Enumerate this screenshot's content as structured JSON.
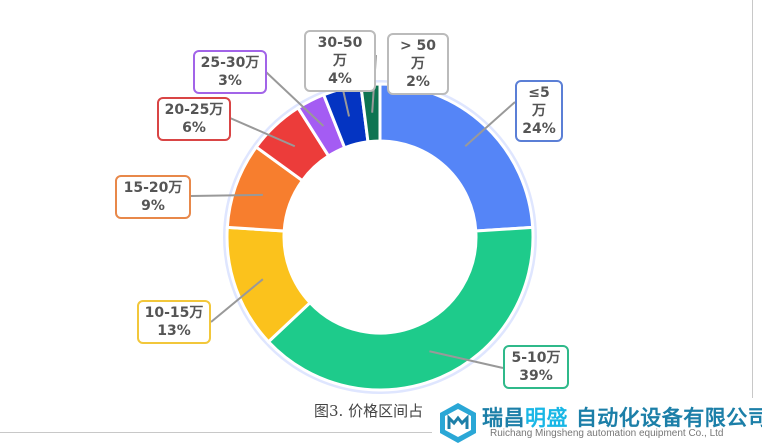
{
  "chart_data": {
    "type": "pie",
    "donut": true,
    "start": "top, clockwise",
    "slices": [
      {
        "label": "≤5万",
        "pct_label": "24%",
        "value": 24,
        "color": "#5585f7"
      },
      {
        "label": "5-10万",
        "pct_label": "39%",
        "value": 39,
        "color": "#1ecb8b"
      },
      {
        "label": "10-15万",
        "pct_label": "13%",
        "value": 13,
        "color": "#fbc21c"
      },
      {
        "label": "15-20万",
        "pct_label": "9%",
        "value": 9,
        "color": "#f77e2e"
      },
      {
        "label": "20-25万",
        "pct_label": "6%",
        "value": 6,
        "color": "#ec3c3a"
      },
      {
        "label": "25-30万",
        "pct_label": "3%",
        "value": 3,
        "color": "#a45cf3"
      },
      {
        "label": "30-50万",
        "pct_label": "4%",
        "value": 4,
        "color": "#0434c2"
      },
      {
        "label": "> 50万",
        "pct_label": "2%",
        "value": 2,
        "color": "#0e7452"
      }
    ],
    "label_borders": [
      "#5b7fd6",
      "#2fb98a",
      "#f2c73b",
      "#e8884a",
      "#d94545",
      "#a264e8",
      "#bbbbbb",
      "#bbbbbb"
    ]
  },
  "caption": "图3. 价格区间占",
  "logo": {
    "name_a": "瑞昌",
    "name_b": "明盛",
    "name_c": "自动化设备有限公司",
    "english": "Ruichang Mingsheng automation equipment Co., Ltd"
  }
}
